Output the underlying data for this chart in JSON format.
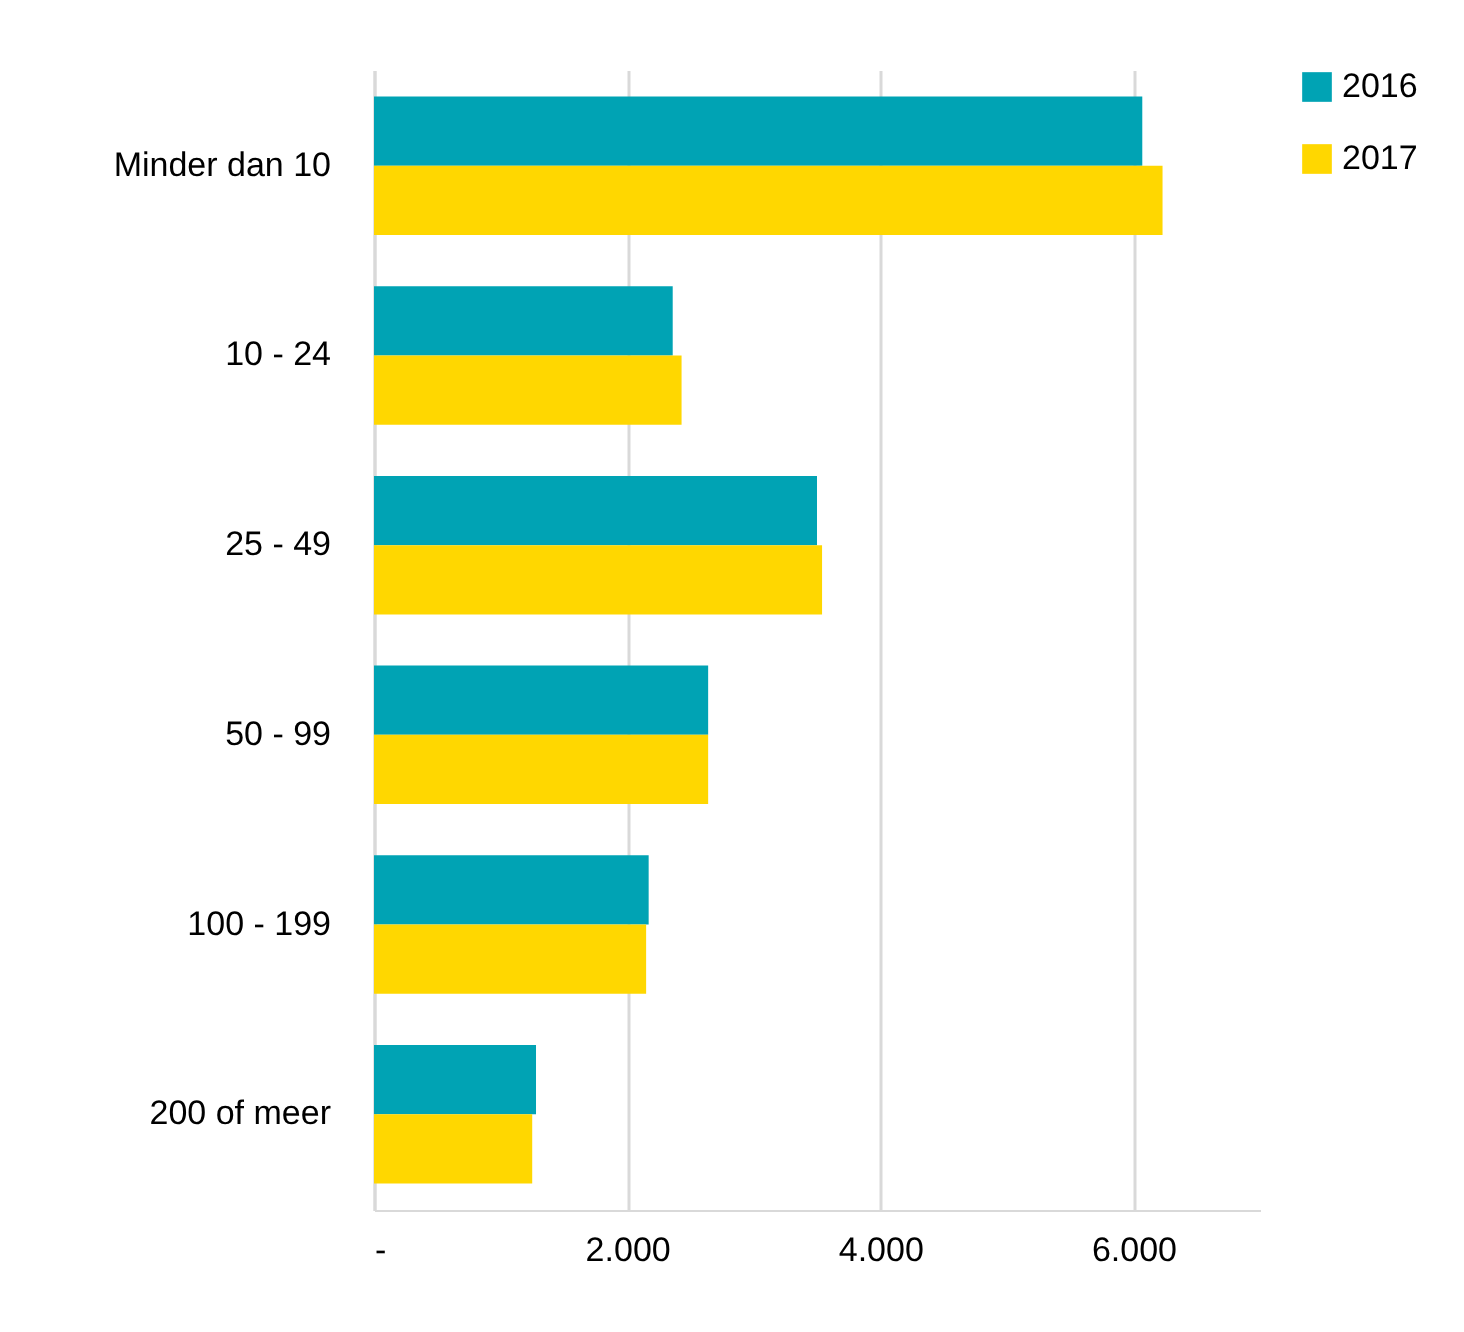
{
  "chart_data": {
    "type": "bar",
    "orientation": "horizontal",
    "categories": [
      "Minder dan 10",
      "10 - 24",
      "25 - 49",
      "50 - 99",
      "100 - 199",
      "200 of meer"
    ],
    "series": [
      {
        "name": "2016",
        "color": "#00a3b4",
        "values": [
          6070,
          2360,
          3500,
          2640,
          2170,
          1280
        ]
      },
      {
        "name": "2017",
        "color": "#ffd700",
        "values": [
          6230,
          2430,
          3540,
          2640,
          2150,
          1250
        ]
      }
    ],
    "xlim": [
      0,
      7000
    ],
    "xticks": [
      {
        "value": 0,
        "label": "-"
      },
      {
        "value": 2000,
        "label": "2.000"
      },
      {
        "value": 4000,
        "label": "4.000"
      },
      {
        "value": 6000,
        "label": "6.000"
      }
    ],
    "grid": "x",
    "legend": "right"
  }
}
